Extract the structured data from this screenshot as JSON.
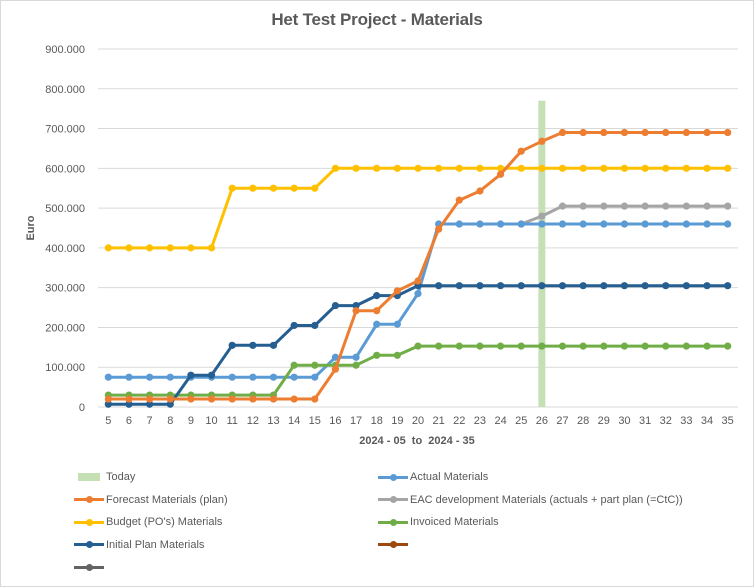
{
  "chart_data": {
    "type": "line",
    "title": "Het Test Project - Materials",
    "xlabel": "2024 - 05  to  2024 - 35",
    "ylabel": "Euro",
    "ylim": [
      0,
      900000
    ],
    "yticks": [
      0,
      100000,
      200000,
      300000,
      400000,
      500000,
      600000,
      700000,
      800000,
      900000
    ],
    "ytick_labels": [
      "0",
      "100.000",
      "200.000",
      "300.000",
      "400.000",
      "500.000",
      "600.000",
      "700.000",
      "800.000",
      "900.000"
    ],
    "grid": true,
    "legend_position": "bottom",
    "categories": [
      "5",
      "6",
      "7",
      "8",
      "9",
      "10",
      "11",
      "12",
      "13",
      "14",
      "15",
      "16",
      "17",
      "18",
      "19",
      "20",
      "21",
      "22",
      "23",
      "24",
      "25",
      "26",
      "27",
      "28",
      "29",
      "30",
      "31",
      "32",
      "33",
      "34",
      "35"
    ],
    "today": {
      "name": "Today",
      "category": "26",
      "value": 770000,
      "color": "#c5e0b4"
    },
    "series": [
      {
        "name": "Actual Materials",
        "color": "#5b9bd5",
        "values": [
          75000,
          75000,
          75000,
          75000,
          75000,
          75000,
          75000,
          75000,
          75000,
          75000,
          75000,
          125000,
          125000,
          208000,
          208000,
          285000,
          460000,
          460000,
          460000,
          460000,
          460000,
          460000,
          460000,
          460000,
          460000,
          460000,
          460000,
          460000,
          460000,
          460000,
          460000
        ]
      },
      {
        "name": "Forecast Materials (plan)",
        "color": "#ed7d31",
        "values": [
          20000,
          20000,
          20000,
          20000,
          20000,
          20000,
          20000,
          20000,
          20000,
          20000,
          20000,
          95000,
          242000,
          242000,
          292000,
          317000,
          447000,
          520000,
          543000,
          585000,
          643000,
          668000,
          690000,
          690000,
          690000,
          690000,
          690000,
          690000,
          690000,
          690000,
          690000
        ]
      },
      {
        "name": "EAC development Materials  (actuals + part plan (=CtC))",
        "color": "#a5a5a5",
        "values": [
          null,
          null,
          null,
          null,
          null,
          null,
          null,
          null,
          null,
          null,
          null,
          null,
          null,
          null,
          null,
          null,
          null,
          null,
          null,
          null,
          460000,
          480000,
          505000,
          505000,
          505000,
          505000,
          505000,
          505000,
          505000,
          505000,
          505000
        ]
      },
      {
        "name": "Budget (PO's) Materials",
        "color": "#ffc000",
        "values": [
          400000,
          400000,
          400000,
          400000,
          400000,
          400000,
          550000,
          550000,
          550000,
          550000,
          550000,
          600000,
          600000,
          600000,
          600000,
          600000,
          600000,
          600000,
          600000,
          600000,
          600000,
          600000,
          600000,
          600000,
          600000,
          600000,
          600000,
          600000,
          600000,
          600000,
          600000
        ]
      },
      {
        "name": "Invoiced Materials",
        "color": "#70ad47",
        "values": [
          30000,
          30000,
          30000,
          30000,
          30000,
          30000,
          30000,
          30000,
          30000,
          105000,
          105000,
          105000,
          105000,
          130000,
          130000,
          153000,
          153000,
          153000,
          153000,
          153000,
          153000,
          153000,
          153000,
          153000,
          153000,
          153000,
          153000,
          153000,
          153000,
          153000,
          153000
        ]
      },
      {
        "name": "Initial Plan Materials",
        "color": "#255e91",
        "values": [
          7000,
          7000,
          7000,
          7000,
          80000,
          80000,
          155000,
          155000,
          155000,
          205000,
          205000,
          255000,
          255000,
          280000,
          280000,
          305000,
          305000,
          305000,
          305000,
          305000,
          305000,
          305000,
          305000,
          305000,
          305000,
          305000,
          305000,
          305000,
          305000,
          305000,
          305000
        ]
      },
      {
        "name": "",
        "color": "#9e480e",
        "values": []
      },
      {
        "name": "",
        "color": "#636363",
        "values": []
      }
    ]
  }
}
